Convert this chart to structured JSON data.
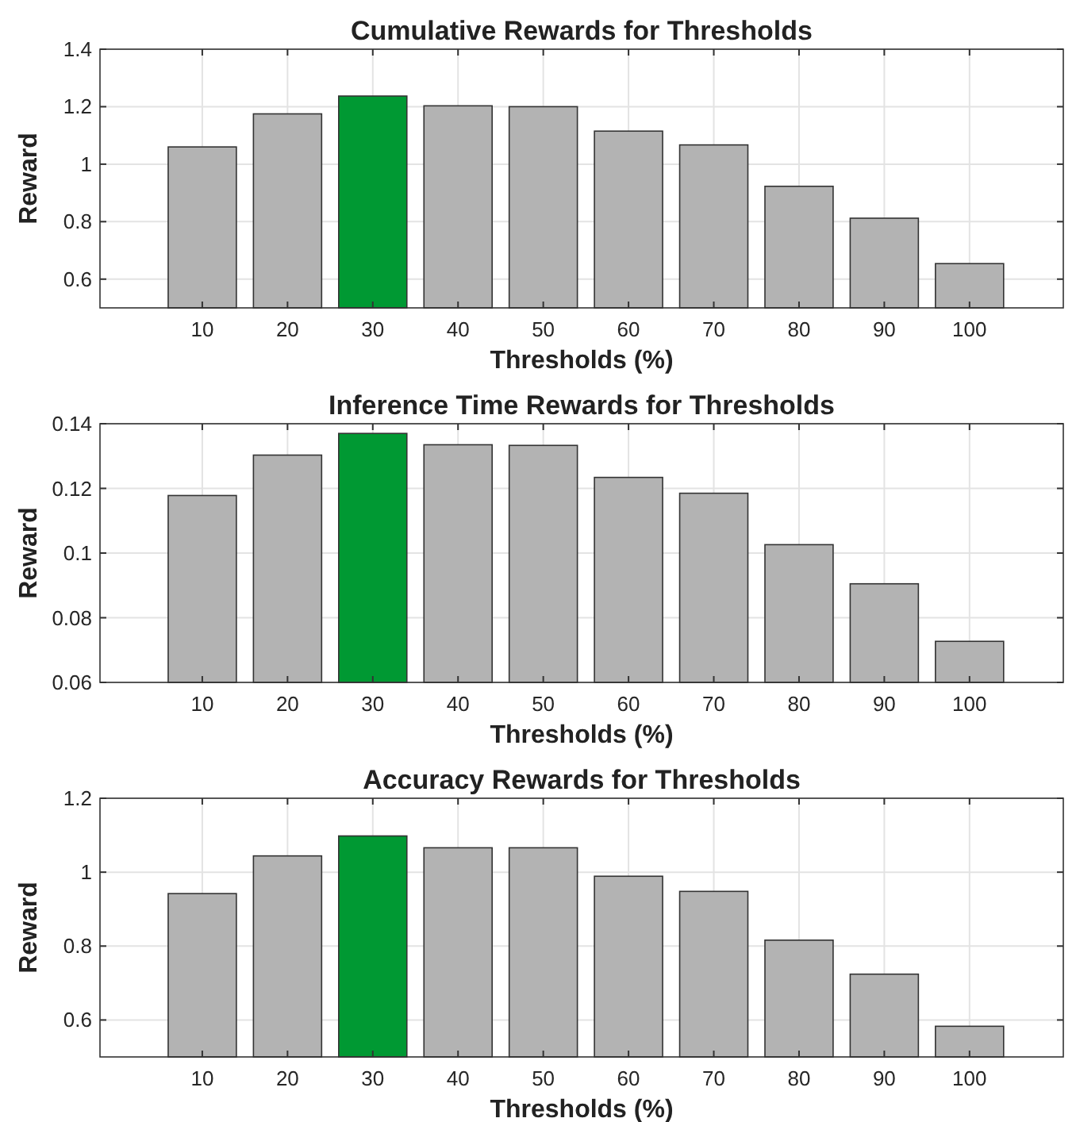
{
  "chart_data": [
    {
      "type": "bar",
      "title": "Cumulative Rewards for Thresholds",
      "xlabel": "Thresholds (%)",
      "ylabel": "Reward",
      "x": [
        10,
        20,
        30,
        40,
        50,
        60,
        70,
        80,
        90,
        100
      ],
      "values": [
        1.06,
        1.175,
        1.237,
        1.203,
        1.2,
        1.115,
        1.067,
        0.923,
        0.812,
        0.654
      ],
      "colors": [
        "#b3b3b3",
        "#b3b3b3",
        "#009933",
        "#b3b3b3",
        "#b3b3b3",
        "#b3b3b3",
        "#b3b3b3",
        "#b3b3b3",
        "#b3b3b3",
        "#b3b3b3"
      ],
      "xlim": [
        -2,
        111
      ],
      "xticks": [
        10,
        20,
        30,
        40,
        50,
        60,
        70,
        80,
        90,
        100
      ],
      "ylim": [
        0.5,
        1.4
      ],
      "yticks": [
        0.6,
        0.8,
        1,
        1.2,
        1.4
      ],
      "grid": true
    },
    {
      "type": "bar",
      "title": "Inference Time Rewards for Thresholds",
      "xlabel": "Thresholds (%)",
      "ylabel": "Reward",
      "x": [
        10,
        20,
        30,
        40,
        50,
        60,
        70,
        80,
        90,
        100
      ],
      "values": [
        0.1178,
        0.1303,
        0.137,
        0.1335,
        0.1333,
        0.1234,
        0.1185,
        0.1026,
        0.0905,
        0.0727
      ],
      "colors": [
        "#b3b3b3",
        "#b3b3b3",
        "#009933",
        "#b3b3b3",
        "#b3b3b3",
        "#b3b3b3",
        "#b3b3b3",
        "#b3b3b3",
        "#b3b3b3",
        "#b3b3b3"
      ],
      "xlim": [
        -2,
        111
      ],
      "xticks": [
        10,
        20,
        30,
        40,
        50,
        60,
        70,
        80,
        90,
        100
      ],
      "ylim": [
        0.06,
        0.14
      ],
      "yticks": [
        0.06,
        0.08,
        0.1,
        0.12,
        0.14
      ],
      "grid": true
    },
    {
      "type": "bar",
      "title": "Accuracy Rewards for Thresholds",
      "xlabel": "Thresholds (%)",
      "ylabel": "Reward",
      "x": [
        10,
        20,
        30,
        40,
        50,
        60,
        70,
        80,
        90,
        100
      ],
      "values": [
        0.942,
        1.044,
        1.098,
        1.066,
        1.066,
        0.989,
        0.948,
        0.816,
        0.724,
        0.583
      ],
      "colors": [
        "#b3b3b3",
        "#b3b3b3",
        "#009933",
        "#b3b3b3",
        "#b3b3b3",
        "#b3b3b3",
        "#b3b3b3",
        "#b3b3b3",
        "#b3b3b3",
        "#b3b3b3"
      ],
      "xlim": [
        -2,
        111
      ],
      "xticks": [
        10,
        20,
        30,
        40,
        50,
        60,
        70,
        80,
        90,
        100
      ],
      "ylim": [
        0.5,
        1.2
      ],
      "yticks": [
        0.6,
        0.8,
        1,
        1.2
      ],
      "grid": true
    }
  ]
}
